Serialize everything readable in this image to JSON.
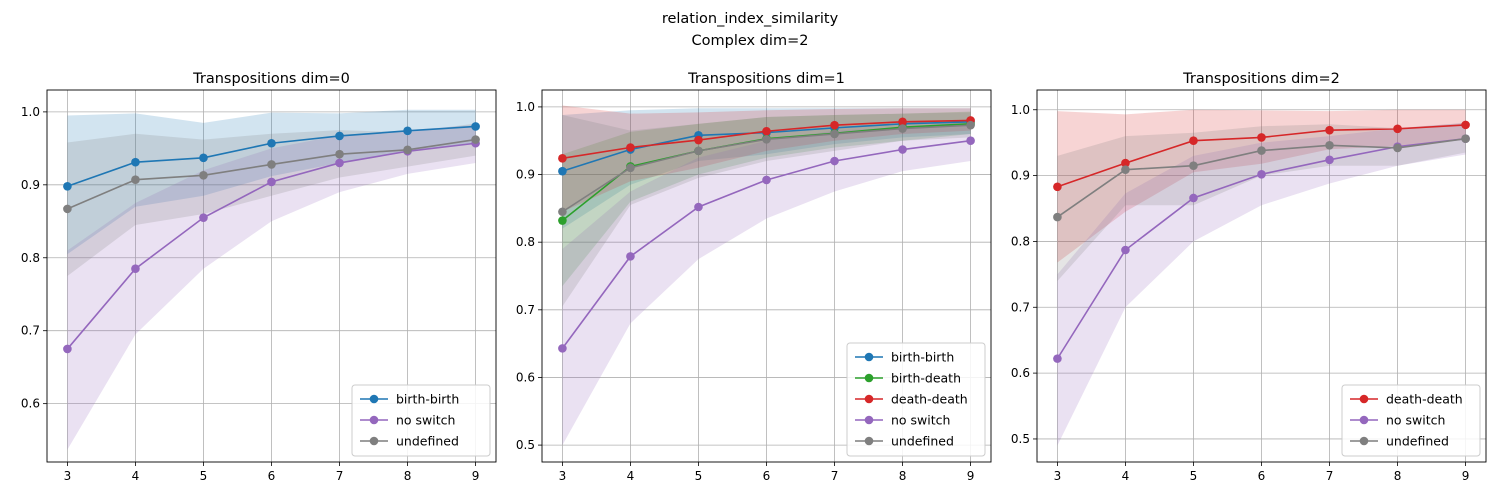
{
  "suptitle": [
    "relation_index_similarity",
    "Complex dim=2"
  ],
  "colors": {
    "birth-birth": "#1f77b4",
    "birth-death": "#2ca02c",
    "death-death": "#d62728",
    "no switch": "#9467bd",
    "undefined": "#7f7f7f"
  },
  "chart_data": [
    {
      "type": "line",
      "title": "Transpositions dim=0",
      "x": [
        3,
        4,
        5,
        6,
        7,
        8,
        9
      ],
      "xticks": [
        3,
        4,
        5,
        6,
        7,
        8,
        9
      ],
      "yticks": [
        0.6,
        0.7,
        0.8,
        0.9,
        1.0
      ],
      "ylim": [
        0.52,
        1.03
      ],
      "grid": true,
      "legend_loc": "lower-right",
      "series": [
        {
          "name": "birth-birth",
          "values": [
            0.898,
            0.931,
            0.937,
            0.957,
            0.967,
            0.974,
            0.98
          ],
          "lower": [
            0.805,
            0.87,
            0.885,
            0.912,
            0.93,
            0.945,
            0.957
          ],
          "upper": [
            0.995,
            0.998,
            0.985,
            0.999,
            0.998,
            1.003,
            1.003
          ]
        },
        {
          "name": "no switch",
          "values": [
            0.675,
            0.785,
            0.855,
            0.904,
            0.93,
            0.946,
            0.957
          ],
          "lower": [
            0.537,
            0.695,
            0.785,
            0.85,
            0.89,
            0.915,
            0.93
          ],
          "upper": [
            0.81,
            0.875,
            0.92,
            0.95,
            0.968,
            0.975,
            0.982
          ]
        },
        {
          "name": "undefined",
          "values": [
            0.867,
            0.907,
            0.913,
            0.928,
            0.942,
            0.948,
            0.962
          ],
          "lower": [
            0.775,
            0.845,
            0.86,
            0.885,
            0.91,
            0.925,
            0.94
          ],
          "upper": [
            0.958,
            0.97,
            0.962,
            0.97,
            0.975,
            0.972,
            0.984
          ]
        }
      ]
    },
    {
      "type": "line",
      "title": "Transpositions dim=1",
      "x": [
        3,
        4,
        5,
        6,
        7,
        8,
        9
      ],
      "xticks": [
        3,
        4,
        5,
        6,
        7,
        8,
        9
      ],
      "yticks": [
        0.5,
        0.6,
        0.7,
        0.8,
        0.9,
        1.0
      ],
      "ylim": [
        0.475,
        1.025
      ],
      "grid": true,
      "legend_loc": "lower-right",
      "series": [
        {
          "name": "birth-birth",
          "values": [
            0.905,
            0.937,
            0.958,
            0.962,
            0.969,
            0.975,
            0.978
          ],
          "lower": [
            0.82,
            0.885,
            0.92,
            0.93,
            0.945,
            0.955,
            0.96
          ],
          "upper": [
            0.988,
            0.995,
            0.998,
            0.998,
            0.998,
            0.998,
            0.998
          ]
        },
        {
          "name": "birth-death",
          "values": [
            0.832,
            0.912,
            0.935,
            0.953,
            0.961,
            0.97,
            0.975
          ],
          "lower": [
            0.735,
            0.86,
            0.9,
            0.925,
            0.94,
            0.95,
            0.96
          ],
          "upper": [
            0.93,
            0.963,
            0.975,
            0.985,
            0.988,
            0.99,
            0.993
          ]
        },
        {
          "name": "death-death",
          "values": [
            0.924,
            0.94,
            0.951,
            0.964,
            0.973,
            0.978,
            0.98
          ],
          "lower": [
            0.845,
            0.89,
            0.91,
            0.935,
            0.95,
            0.96,
            0.965
          ],
          "upper": [
            1.002,
            0.99,
            0.992,
            0.995,
            0.997,
            0.998,
            0.998
          ]
        },
        {
          "name": "no switch",
          "values": [
            0.643,
            0.779,
            0.852,
            0.892,
            0.92,
            0.937,
            0.95
          ],
          "lower": [
            0.5,
            0.68,
            0.775,
            0.835,
            0.875,
            0.905,
            0.92
          ],
          "upper": [
            0.79,
            0.875,
            0.925,
            0.95,
            0.965,
            0.97,
            0.978
          ]
        },
        {
          "name": "undefined",
          "values": [
            0.845,
            0.91,
            0.935,
            0.952,
            0.96,
            0.968,
            0.973
          ],
          "lower": [
            0.705,
            0.855,
            0.895,
            0.92,
            0.935,
            0.95,
            0.955
          ],
          "upper": [
            0.988,
            0.965,
            0.975,
            0.985,
            0.988,
            0.99,
            0.992
          ]
        }
      ]
    },
    {
      "type": "line",
      "title": "Transpositions dim=2",
      "x": [
        3,
        4,
        5,
        6,
        7,
        8,
        9
      ],
      "xticks": [
        3,
        4,
        5,
        6,
        7,
        8,
        9
      ],
      "yticks": [
        0.5,
        0.6,
        0.7,
        0.8,
        0.9,
        1.0
      ],
      "ylim": [
        0.465,
        1.03
      ],
      "grid": true,
      "legend_loc": "lower-right",
      "series": [
        {
          "name": "death-death",
          "values": [
            0.883,
            0.919,
            0.953,
            0.958,
            0.969,
            0.971,
            0.977
          ],
          "lower": [
            0.768,
            0.845,
            0.905,
            0.918,
            0.94,
            0.945,
            0.955
          ],
          "upper": [
            0.998,
            0.993,
            1.0,
            0.999,
            0.998,
            1.0,
            1.0
          ]
        },
        {
          "name": "no switch",
          "values": [
            0.622,
            0.787,
            0.866,
            0.902,
            0.924,
            0.944,
            0.956
          ],
          "lower": [
            0.49,
            0.7,
            0.8,
            0.855,
            0.888,
            0.915,
            0.932
          ],
          "upper": [
            0.75,
            0.873,
            0.93,
            0.95,
            0.96,
            0.972,
            0.98
          ]
        },
        {
          "name": "undefined",
          "values": [
            0.837,
            0.909,
            0.915,
            0.938,
            0.946,
            0.942,
            0.956
          ],
          "lower": [
            0.74,
            0.855,
            0.855,
            0.9,
            0.915,
            0.915,
            0.935
          ],
          "upper": [
            0.93,
            0.96,
            0.965,
            0.975,
            0.978,
            0.972,
            0.98
          ]
        }
      ]
    }
  ]
}
